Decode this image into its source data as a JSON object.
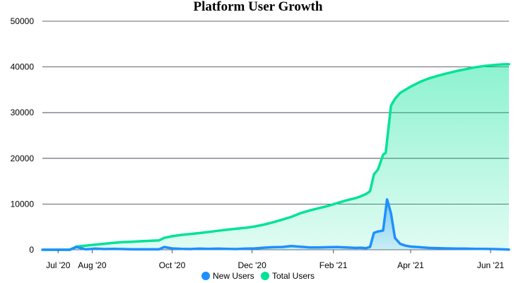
{
  "chart_data": {
    "type": "area",
    "title": "Platform User Growth",
    "xlabel": "",
    "ylabel": "",
    "ylim": [
      0,
      50000
    ],
    "yticks": [
      "0",
      "10000",
      "20000",
      "30000",
      "40000",
      "50000"
    ],
    "xlim": [
      "2020-06-24",
      "2021-06-15"
    ],
    "xticks": [
      {
        "date": "2020-07-06",
        "label": "Jul '20"
      },
      {
        "date": "2020-08-01",
        "label": "Aug '20"
      },
      {
        "date": "2020-10-01",
        "label": "Oct '20"
      },
      {
        "date": "2020-12-01",
        "label": "Dec '20"
      },
      {
        "date": "2021-02-01",
        "label": "Feb '21"
      },
      {
        "date": "2021-04-01",
        "label": "Apr '21"
      },
      {
        "date": "2021-06-01",
        "label": "Jun '21"
      }
    ],
    "grid": true,
    "legend_position": "bottom",
    "series": [
      {
        "name": "Total Users",
        "color": "#00e396",
        "points": [
          [
            "2020-06-24",
            0
          ],
          [
            "2020-07-01",
            0
          ],
          [
            "2020-07-08",
            0
          ],
          [
            "2020-07-15",
            0
          ],
          [
            "2020-07-20",
            700
          ],
          [
            "2020-07-27",
            900
          ],
          [
            "2020-08-03",
            1100
          ],
          [
            "2020-08-10",
            1300
          ],
          [
            "2020-08-17",
            1500
          ],
          [
            "2020-08-24",
            1650
          ],
          [
            "2020-08-31",
            1750
          ],
          [
            "2020-09-07",
            1850
          ],
          [
            "2020-09-14",
            1950
          ],
          [
            "2020-09-21",
            2050
          ],
          [
            "2020-09-25",
            2600
          ],
          [
            "2020-10-01",
            2950
          ],
          [
            "2020-10-08",
            3250
          ],
          [
            "2020-10-15",
            3450
          ],
          [
            "2020-10-22",
            3650
          ],
          [
            "2020-10-29",
            3900
          ],
          [
            "2020-11-05",
            4150
          ],
          [
            "2020-11-12",
            4400
          ],
          [
            "2020-11-19",
            4600
          ],
          [
            "2020-11-26",
            4800
          ],
          [
            "2020-12-03",
            5100
          ],
          [
            "2020-12-10",
            5500
          ],
          [
            "2020-12-17",
            6000
          ],
          [
            "2020-12-24",
            6600
          ],
          [
            "2020-12-31",
            7200
          ],
          [
            "2021-01-07",
            8000
          ],
          [
            "2021-01-14",
            8600
          ],
          [
            "2021-01-21",
            9100
          ],
          [
            "2021-01-28",
            9600
          ],
          [
            "2021-02-04",
            10200
          ],
          [
            "2021-02-11",
            10800
          ],
          [
            "2021-02-18",
            11300
          ],
          [
            "2021-02-22",
            11700
          ],
          [
            "2021-02-26",
            12200
          ],
          [
            "2021-03-01",
            12800
          ],
          [
            "2021-03-04",
            16500
          ],
          [
            "2021-03-07",
            17500
          ],
          [
            "2021-03-11",
            20800
          ],
          [
            "2021-03-13",
            21200
          ],
          [
            "2021-03-17",
            31500
          ],
          [
            "2021-03-20",
            33000
          ],
          [
            "2021-03-24",
            34300
          ],
          [
            "2021-03-28",
            35000
          ],
          [
            "2021-04-01",
            35700
          ],
          [
            "2021-04-08",
            36700
          ],
          [
            "2021-04-15",
            37500
          ],
          [
            "2021-04-22",
            38100
          ],
          [
            "2021-04-29",
            38600
          ],
          [
            "2021-05-06",
            39100
          ],
          [
            "2021-05-13",
            39500
          ],
          [
            "2021-05-20",
            39900
          ],
          [
            "2021-05-27",
            40200
          ],
          [
            "2021-06-03",
            40400
          ],
          [
            "2021-06-10",
            40550
          ],
          [
            "2021-06-15",
            40600
          ]
        ]
      },
      {
        "name": "New Users",
        "color": "#1e90ff",
        "points": [
          [
            "2020-06-24",
            0
          ],
          [
            "2020-07-01",
            0
          ],
          [
            "2020-07-08",
            0
          ],
          [
            "2020-07-15",
            0
          ],
          [
            "2020-07-20",
            600
          ],
          [
            "2020-07-27",
            100
          ],
          [
            "2020-08-03",
            250
          ],
          [
            "2020-08-10",
            150
          ],
          [
            "2020-08-17",
            200
          ],
          [
            "2020-08-24",
            150
          ],
          [
            "2020-08-31",
            100
          ],
          [
            "2020-09-07",
            100
          ],
          [
            "2020-09-14",
            100
          ],
          [
            "2020-09-21",
            100
          ],
          [
            "2020-09-25",
            600
          ],
          [
            "2020-10-01",
            300
          ],
          [
            "2020-10-08",
            200
          ],
          [
            "2020-10-15",
            150
          ],
          [
            "2020-10-22",
            250
          ],
          [
            "2020-10-29",
            200
          ],
          [
            "2020-11-05",
            250
          ],
          [
            "2020-11-12",
            200
          ],
          [
            "2020-11-19",
            150
          ],
          [
            "2020-11-26",
            250
          ],
          [
            "2020-12-03",
            300
          ],
          [
            "2020-12-10",
            450
          ],
          [
            "2020-12-17",
            550
          ],
          [
            "2020-12-24",
            600
          ],
          [
            "2020-12-31",
            800
          ],
          [
            "2021-01-07",
            650
          ],
          [
            "2021-01-14",
            500
          ],
          [
            "2021-01-21",
            500
          ],
          [
            "2021-01-28",
            550
          ],
          [
            "2021-02-04",
            600
          ],
          [
            "2021-02-11",
            500
          ],
          [
            "2021-02-18",
            400
          ],
          [
            "2021-02-22",
            450
          ],
          [
            "2021-02-26",
            350
          ],
          [
            "2021-03-01",
            600
          ],
          [
            "2021-03-04",
            3700
          ],
          [
            "2021-03-07",
            4000
          ],
          [
            "2021-03-11",
            4200
          ],
          [
            "2021-03-14",
            11000
          ],
          [
            "2021-03-17",
            8000
          ],
          [
            "2021-03-20",
            2600
          ],
          [
            "2021-03-24",
            1300
          ],
          [
            "2021-03-28",
            900
          ],
          [
            "2021-04-01",
            700
          ],
          [
            "2021-04-08",
            550
          ],
          [
            "2021-04-15",
            400
          ],
          [
            "2021-04-22",
            350
          ],
          [
            "2021-04-29",
            300
          ],
          [
            "2021-05-06",
            250
          ],
          [
            "2021-05-13",
            250
          ],
          [
            "2021-05-20",
            200
          ],
          [
            "2021-05-27",
            200
          ],
          [
            "2021-06-03",
            150
          ],
          [
            "2021-06-10",
            100
          ],
          [
            "2021-06-15",
            50
          ]
        ]
      }
    ]
  }
}
